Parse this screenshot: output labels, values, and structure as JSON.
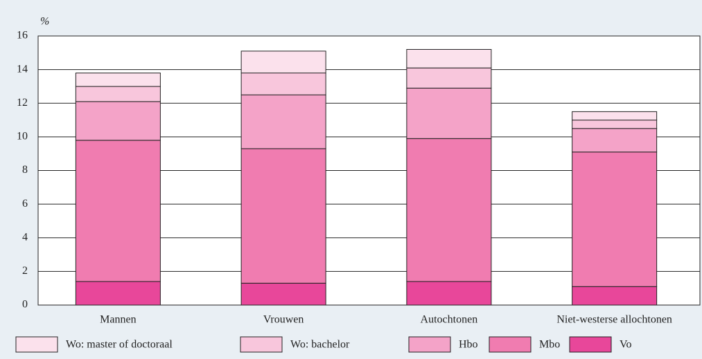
{
  "chart_data": {
    "type": "stacked-bar",
    "ylabel": "%",
    "categories": [
      "Mannen",
      "Vrouwen",
      "Autochtonen",
      "Niet-westerse allochtonen"
    ],
    "series": [
      {
        "name": "Wo: master of doctoraal",
        "color": "#fbe1ec",
        "values": [
          0.8,
          1.3,
          1.1,
          0.5
        ]
      },
      {
        "name": "Wo: bachelor",
        "color": "#f8c6dc",
        "values": [
          0.9,
          1.3,
          1.2,
          0.5
        ]
      },
      {
        "name": "Hbo",
        "color": "#f4a3c8",
        "values": [
          2.3,
          3.2,
          3.0,
          1.4
        ]
      },
      {
        "name": "Mbo",
        "color": "#f07cb0",
        "values": [
          8.4,
          8.0,
          8.5,
          8.0
        ]
      },
      {
        "name": "Vo",
        "color": "#e8479a",
        "values": [
          1.4,
          1.3,
          1.4,
          1.1
        ]
      }
    ],
    "ylim": [
      0,
      16
    ],
    "yticks": [
      0,
      2,
      4,
      6,
      8,
      10,
      12,
      14,
      16
    ],
    "grid": true,
    "legend": "bottom"
  }
}
